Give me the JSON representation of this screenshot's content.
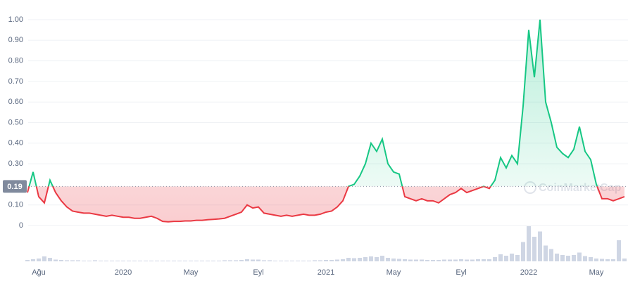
{
  "chart_data": {
    "type": "line",
    "categories": [
      null,
      null,
      "Ağu",
      null,
      null,
      null,
      null,
      null,
      null,
      null,
      null,
      null,
      null,
      null,
      null,
      null,
      null,
      "2020",
      null,
      null,
      null,
      null,
      null,
      null,
      null,
      null,
      null,
      null,
      null,
      "May",
      null,
      null,
      null,
      null,
      null,
      null,
      null,
      null,
      null,
      null,
      null,
      "Eyl",
      null,
      null,
      null,
      null,
      null,
      null,
      null,
      null,
      null,
      null,
      null,
      "2021",
      null,
      null,
      null,
      null,
      null,
      null,
      null,
      null,
      null,
      null,
      null,
      "May",
      null,
      null,
      null,
      null,
      null,
      null,
      null,
      null,
      null,
      null,
      null,
      "Eyl",
      null,
      null,
      null,
      null,
      null,
      null,
      null,
      null,
      null,
      null,
      null,
      "2022",
      null,
      null,
      null,
      null,
      null,
      null,
      null,
      null,
      null,
      null,
      null,
      "May",
      null,
      null,
      null,
      null,
      null
    ],
    "values": [
      0.16,
      0.26,
      0.14,
      0.11,
      0.22,
      0.16,
      0.12,
      0.09,
      0.07,
      0.065,
      0.06,
      0.06,
      0.055,
      0.05,
      0.045,
      0.05,
      0.045,
      0.04,
      0.04,
      0.035,
      0.035,
      0.04,
      0.045,
      0.035,
      0.02,
      0.018,
      0.02,
      0.02,
      0.022,
      0.022,
      0.025,
      0.025,
      0.028,
      0.03,
      0.032,
      0.035,
      0.045,
      0.055,
      0.065,
      0.1,
      0.085,
      0.09,
      0.06,
      0.055,
      0.05,
      0.045,
      0.05,
      0.045,
      0.05,
      0.055,
      0.05,
      0.05,
      0.055,
      0.065,
      0.07,
      0.09,
      0.12,
      0.19,
      0.2,
      0.24,
      0.3,
      0.4,
      0.36,
      0.42,
      0.3,
      0.26,
      0.25,
      0.14,
      0.13,
      0.12,
      0.13,
      0.12,
      0.12,
      0.11,
      0.13,
      0.15,
      0.16,
      0.18,
      0.16,
      0.17,
      0.18,
      0.19,
      0.18,
      0.22,
      0.33,
      0.28,
      0.34,
      0.3,
      0.58,
      0.95,
      0.72,
      1.0,
      0.6,
      0.5,
      0.38,
      0.35,
      0.33,
      0.37,
      0.48,
      0.36,
      0.32,
      0.2,
      0.13,
      0.13,
      0.12,
      0.13,
      0.14
    ],
    "baseline": 0.19,
    "color_above": "#16c784",
    "color_below": "#ea3943",
    "ylim": [
      0,
      1.05
    ],
    "yticks": [
      0,
      {
        "value": 0.1,
        "label": "0.10"
      },
      {
        "value": 0.3,
        "label": "0.30"
      },
      {
        "value": 0.4,
        "label": "0.40"
      },
      {
        "value": 0.5,
        "label": "0.50"
      },
      {
        "value": 0.6,
        "label": "0.60"
      },
      {
        "value": 0.7,
        "label": "0.70"
      },
      {
        "value": 0.8,
        "label": "0.80"
      },
      {
        "value": 0.9,
        "label": "0.90"
      },
      {
        "value": 1,
        "label": "1.00"
      }
    ],
    "grid": true,
    "volume": [
      4,
      6,
      8,
      14,
      10,
      5,
      4,
      3,
      3,
      3,
      2,
      2,
      3,
      2,
      2,
      2,
      2,
      2,
      2,
      2,
      2,
      2,
      2,
      2,
      2,
      2,
      2,
      2,
      2,
      2,
      2,
      2,
      2,
      2,
      2,
      3,
      3,
      3,
      4,
      6,
      5,
      5,
      3,
      3,
      2,
      2,
      2,
      2,
      2,
      2,
      2,
      3,
      3,
      4,
      4,
      5,
      6,
      10,
      9,
      10,
      12,
      14,
      12,
      16,
      10,
      8,
      7,
      6,
      5,
      5,
      5,
      4,
      4,
      4,
      5,
      5,
      5,
      6,
      5,
      5,
      6,
      6,
      6,
      12,
      20,
      16,
      22,
      18,
      55,
      100,
      70,
      85,
      45,
      35,
      22,
      18,
      16,
      18,
      25,
      15,
      12,
      8,
      7,
      6,
      6,
      60,
      8
    ],
    "volume_lim": [
      0,
      100
    ],
    "volume_color": "#cfd6e4",
    "watermark": "CoinMarketCap"
  }
}
